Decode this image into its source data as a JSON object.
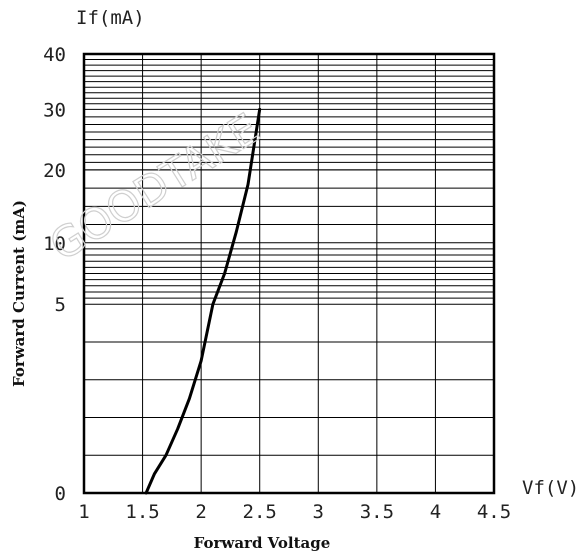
{
  "chart_data": {
    "type": "line",
    "xlabel": "Forward Voltage",
    "ylabel": "Forward Current (mA)",
    "x_unit_label": "Vf(V)",
    "y_unit_label": "If(mA)",
    "x_ticks": [
      {
        "value": 1,
        "label": "1"
      },
      {
        "value": 1.5,
        "label": "1.5"
      },
      {
        "value": 2,
        "label": "2"
      },
      {
        "value": 2.5,
        "label": "2.5"
      },
      {
        "value": 3,
        "label": "3"
      },
      {
        "value": 3.5,
        "label": "3.5"
      },
      {
        "value": 4,
        "label": "4"
      },
      {
        "value": 4.5,
        "label": "4.5"
      }
    ],
    "y_ticks": [
      {
        "value": 0,
        "label": "0"
      },
      {
        "value": 5,
        "label": "5"
      },
      {
        "value": 10,
        "label": "10"
      },
      {
        "value": 20,
        "label": "20"
      },
      {
        "value": 30,
        "label": "30"
      },
      {
        "value": 40,
        "label": "40"
      }
    ],
    "xlim": [
      1,
      4.5
    ],
    "ylim": [
      0,
      40
    ],
    "grid": true,
    "series": [
      {
        "x": [
          1.53,
          1.6,
          1.7,
          1.8,
          1.9,
          2.0,
          2.1,
          2.2,
          2.3,
          2.4,
          2.5
        ],
        "y": [
          0,
          0.5,
          1.0,
          1.7,
          2.5,
          3.5,
          5.0,
          7.5,
          11.5,
          18.0,
          30.0
        ]
      }
    ],
    "watermark": "GOODTAKE"
  }
}
